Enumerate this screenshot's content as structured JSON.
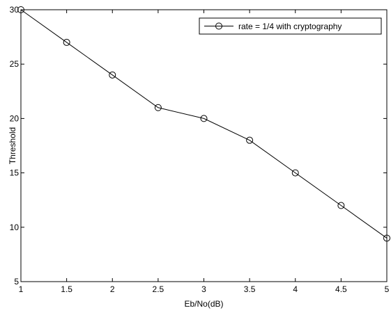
{
  "chart_data": {
    "type": "line",
    "xlabel": "Eb/No(dB)",
    "ylabel": "Threshold",
    "xlim": [
      1,
      5
    ],
    "ylim": [
      5,
      30
    ],
    "xticks": [
      1,
      1.5,
      2,
      2.5,
      3,
      3.5,
      4,
      4.5,
      5
    ],
    "xtick_labels": [
      "1",
      "1.5",
      "2",
      "2.5",
      "3",
      "3.5",
      "4",
      "4.5",
      "5"
    ],
    "yticks": [
      5,
      10,
      15,
      20,
      25,
      30
    ],
    "ytick_labels": [
      "5",
      "10",
      "15",
      "20",
      "25",
      "30"
    ],
    "grid": false,
    "legend_position": "top-right",
    "series": [
      {
        "name": "rate = 1/4 with cryptography",
        "color": "#000000",
        "marker": "circle",
        "x": [
          1,
          1.5,
          2,
          2.5,
          3,
          3.5,
          4,
          4.5,
          5
        ],
        "y": [
          30,
          27,
          24,
          21,
          20,
          18,
          15,
          12,
          9
        ]
      }
    ]
  }
}
